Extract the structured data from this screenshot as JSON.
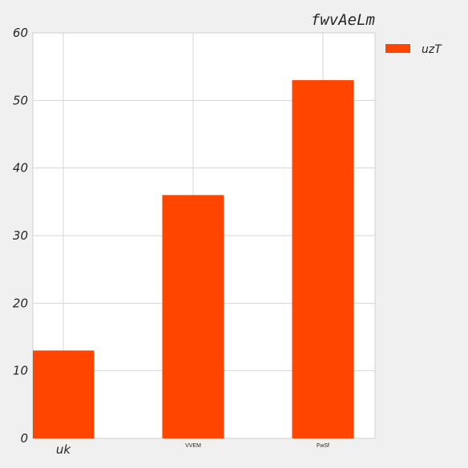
{
  "chart_data": {
    "type": "bar",
    "title": "fwvAeLm",
    "categories": [
      "uk",
      "VVEM",
      "FwSf"
    ],
    "series": [
      {
        "name": "uzT",
        "values": [
          13,
          36,
          53
        ],
        "color": "#ff4500"
      }
    ],
    "ylim": [
      0,
      60
    ],
    "yticks": [
      0,
      10,
      20,
      30,
      40,
      50,
      60
    ],
    "grid": true,
    "legend": "outside-top-right"
  }
}
